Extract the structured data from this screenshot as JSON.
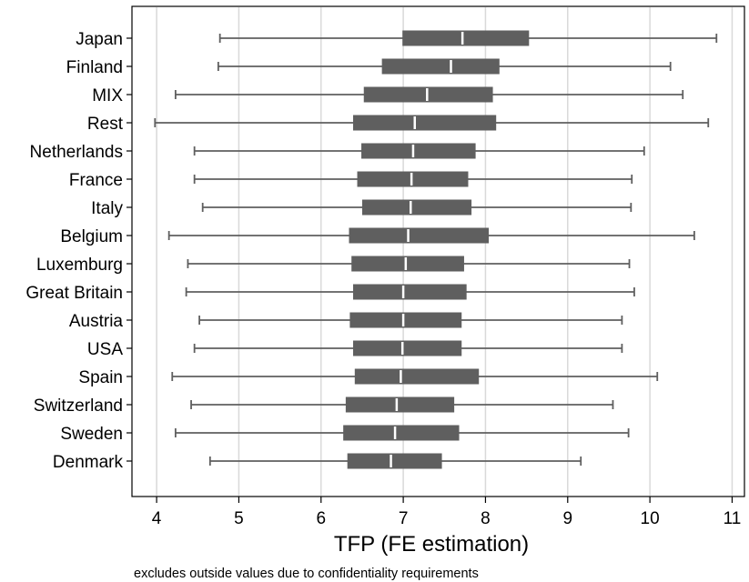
{
  "chart_data": {
    "type": "boxplot",
    "orientation": "horizontal",
    "xlabel": "TFP (FE estimation)",
    "note": "excludes outside values due to confidentiality requirements",
    "xlim": [
      3.7,
      11.15
    ],
    "xticks": [
      4,
      5,
      6,
      7,
      8,
      9,
      10,
      11
    ],
    "grid": "vertical gridlines at x ticks",
    "box_color": "#5f5f5f",
    "median_color": "#ffffff",
    "whisker_color": "#5f5f5f",
    "grid_color": "#d9d9d9",
    "categories": [
      "Japan",
      "Finland",
      "MIX",
      "Rest",
      "Netherlands",
      "France",
      "Italy",
      "Belgium",
      "Luxemburg",
      "Great Britain",
      "Austria",
      "USA",
      "Spain",
      "Switzerland",
      "Sweden",
      "Denmark"
    ],
    "boxes": [
      {
        "category": "Japan",
        "low": 4.77,
        "q1": 6.99,
        "median": 7.72,
        "q3": 8.53,
        "high": 10.81
      },
      {
        "category": "Finland",
        "low": 4.75,
        "q1": 6.74,
        "median": 7.58,
        "q3": 8.17,
        "high": 10.25
      },
      {
        "category": "MIX",
        "low": 4.23,
        "q1": 6.52,
        "median": 7.29,
        "q3": 8.09,
        "high": 10.4
      },
      {
        "category": "Rest",
        "low": 3.98,
        "q1": 6.39,
        "median": 7.14,
        "q3": 8.13,
        "high": 10.71
      },
      {
        "category": "Netherlands",
        "low": 4.46,
        "q1": 6.49,
        "median": 7.12,
        "q3": 7.88,
        "high": 9.93
      },
      {
        "category": "France",
        "low": 4.46,
        "q1": 6.44,
        "median": 7.1,
        "q3": 7.79,
        "high": 9.78
      },
      {
        "category": "Italy",
        "low": 4.56,
        "q1": 6.5,
        "median": 7.09,
        "q3": 7.83,
        "high": 9.77
      },
      {
        "category": "Belgium",
        "low": 4.15,
        "q1": 6.34,
        "median": 7.06,
        "q3": 8.04,
        "high": 10.54
      },
      {
        "category": "Luxemburg",
        "low": 4.38,
        "q1": 6.37,
        "median": 7.03,
        "q3": 7.74,
        "high": 9.75
      },
      {
        "category": "Great Britain",
        "low": 4.36,
        "q1": 6.39,
        "median": 7.0,
        "q3": 7.77,
        "high": 9.81
      },
      {
        "category": "Austria",
        "low": 4.52,
        "q1": 6.35,
        "median": 7.0,
        "q3": 7.71,
        "high": 9.66
      },
      {
        "category": "USA",
        "low": 4.46,
        "q1": 6.39,
        "median": 6.99,
        "q3": 7.71,
        "high": 9.66
      },
      {
        "category": "Spain",
        "low": 4.19,
        "q1": 6.41,
        "median": 6.97,
        "q3": 7.92,
        "high": 10.09
      },
      {
        "category": "Switzerland",
        "low": 4.42,
        "q1": 6.3,
        "median": 6.92,
        "q3": 7.62,
        "high": 9.55
      },
      {
        "category": "Sweden",
        "low": 4.23,
        "q1": 6.27,
        "median": 6.9,
        "q3": 7.68,
        "high": 9.74
      },
      {
        "category": "Denmark",
        "low": 4.65,
        "q1": 6.32,
        "median": 6.85,
        "q3": 7.47,
        "high": 9.16
      }
    ]
  }
}
